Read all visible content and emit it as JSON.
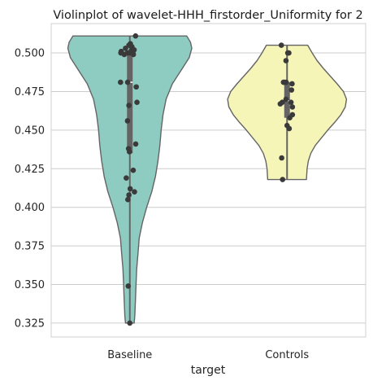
{
  "chart_data": {
    "type": "violin",
    "title": "Violinplot of wavelet-HHH_firstorder_Uniformity for 2",
    "xlabel": "target",
    "ylabel": "",
    "categories": [
      "Baseline",
      "Controls"
    ],
    "ylim": [
      0.316,
      0.519
    ],
    "yticks": [
      0.325,
      0.35,
      0.375,
      0.4,
      0.425,
      0.45,
      0.475,
      0.5
    ],
    "ytick_labels": [
      "0.325",
      "0.350",
      "0.375",
      "0.400",
      "0.425",
      "0.450",
      "0.475",
      "0.500"
    ],
    "grid": true,
    "violins": [
      {
        "category": "Baseline",
        "color": "#8ecbc1",
        "min": 0.325,
        "max": 0.511,
        "median": 0.481,
        "q1": 0.435,
        "q3": 0.5,
        "density": [
          [
            0.325,
            0.07
          ],
          [
            0.33,
            0.08
          ],
          [
            0.34,
            0.09
          ],
          [
            0.35,
            0.1
          ],
          [
            0.36,
            0.11
          ],
          [
            0.37,
            0.13
          ],
          [
            0.38,
            0.15
          ],
          [
            0.39,
            0.2
          ],
          [
            0.4,
            0.27
          ],
          [
            0.41,
            0.35
          ],
          [
            0.42,
            0.41
          ],
          [
            0.43,
            0.45
          ],
          [
            0.44,
            0.48
          ],
          [
            0.45,
            0.5
          ],
          [
            0.46,
            0.53
          ],
          [
            0.47,
            0.58
          ],
          [
            0.48,
            0.68
          ],
          [
            0.49,
            0.84
          ],
          [
            0.497,
            0.95
          ],
          [
            0.503,
            0.99
          ],
          [
            0.507,
            0.97
          ],
          [
            0.511,
            0.91
          ]
        ],
        "points": [
          [
            0.511,
            0.32
          ],
          [
            0.506,
            0.03
          ],
          [
            0.505,
            -0.05
          ],
          [
            0.504,
            0.12
          ],
          [
            0.503,
            -0.24
          ],
          [
            0.502,
            0.24
          ],
          [
            0.501,
            -0.48
          ],
          [
            0.501,
            0.06
          ],
          [
            0.5,
            -0.14
          ],
          [
            0.5,
            0.17
          ],
          [
            0.5,
            -0.5
          ],
          [
            0.5,
            0.01
          ],
          [
            0.499,
            -0.31
          ],
          [
            0.499,
            0.2
          ],
          [
            0.481,
            -0.52
          ],
          [
            0.481,
            -0.12
          ],
          [
            0.478,
            0.36
          ],
          [
            0.468,
            0.4
          ],
          [
            0.466,
            -0.05
          ],
          [
            0.456,
            -0.13
          ],
          [
            0.441,
            0.33
          ],
          [
            0.438,
            -0.07
          ],
          [
            0.436,
            -0.02
          ],
          [
            0.424,
            0.19
          ],
          [
            0.419,
            -0.2
          ],
          [
            0.412,
            0.02
          ],
          [
            0.41,
            0.26
          ],
          [
            0.408,
            -0.05
          ],
          [
            0.405,
            -0.11
          ],
          [
            0.349,
            -0.09
          ],
          [
            0.325,
            0.0
          ]
        ]
      },
      {
        "category": "Controls",
        "color": "#f6f5b8",
        "min": 0.418,
        "max": 0.505,
        "median": 0.469,
        "q1": 0.458,
        "q3": 0.481,
        "density": [
          [
            0.418,
            0.31
          ],
          [
            0.425,
            0.32
          ],
          [
            0.43,
            0.34
          ],
          [
            0.435,
            0.38
          ],
          [
            0.44,
            0.45
          ],
          [
            0.445,
            0.55
          ],
          [
            0.45,
            0.65
          ],
          [
            0.455,
            0.76
          ],
          [
            0.46,
            0.86
          ],
          [
            0.465,
            0.93
          ],
          [
            0.47,
            0.95
          ],
          [
            0.475,
            0.9
          ],
          [
            0.48,
            0.8
          ],
          [
            0.485,
            0.69
          ],
          [
            0.49,
            0.58
          ],
          [
            0.495,
            0.48
          ],
          [
            0.5,
            0.4
          ],
          [
            0.505,
            0.33
          ]
        ],
        "points": [
          [
            0.505,
            -0.32
          ],
          [
            0.5,
            0.04
          ],
          [
            0.5,
            0.1
          ],
          [
            0.495,
            -0.06
          ],
          [
            0.481,
            -0.2
          ],
          [
            0.481,
            -0.15
          ],
          [
            0.481,
            -0.05
          ],
          [
            0.48,
            0.28
          ],
          [
            0.476,
            0.25
          ],
          [
            0.47,
            -0.06
          ],
          [
            0.468,
            -0.27
          ],
          [
            0.468,
            0.22
          ],
          [
            0.467,
            -0.38
          ],
          [
            0.465,
            0.3
          ],
          [
            0.46,
            0.3
          ],
          [
            0.458,
            0.15
          ],
          [
            0.453,
            0.0
          ],
          [
            0.451,
            0.12
          ],
          [
            0.432,
            -0.3
          ],
          [
            0.418,
            -0.25
          ]
        ]
      }
    ]
  }
}
